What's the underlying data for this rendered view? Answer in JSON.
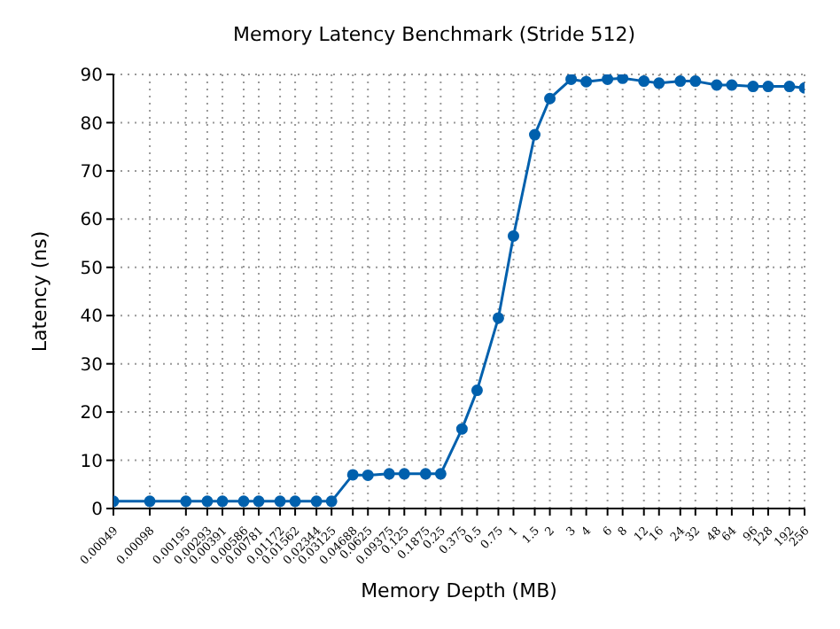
{
  "chart_data": {
    "type": "line",
    "title": "Memory Latency Benchmark (Stride 512)",
    "xlabel": "Memory Depth (MB)",
    "ylabel": "Latency (ns)",
    "log": "x",
    "x": [
      0.00049,
      0.00098,
      0.00195,
      0.00293,
      0.00391,
      0.00586,
      0.00781,
      0.01172,
      0.01562,
      0.02344,
      0.03125,
      0.04688,
      0.0625,
      0.09375,
      0.125,
      0.1875,
      0.25,
      0.375,
      0.5,
      0.75,
      1,
      1.5,
      2,
      3,
      4,
      6,
      8,
      12,
      16,
      24,
      32,
      48,
      64,
      96,
      128,
      192,
      256
    ],
    "series": [
      {
        "color": "#0060ad",
        "values": [
          1.5,
          1.5,
          1.5,
          1.5,
          1.5,
          1.5,
          1.5,
          1.5,
          1.5,
          1.5,
          1.5,
          7,
          6.9,
          7.2,
          7.2,
          7.2,
          7.2,
          16.5,
          24.5,
          39.5,
          56.5,
          77.5,
          85,
          89,
          88.5,
          89,
          89.2,
          88.6,
          88.2,
          88.6,
          88.6,
          87.8,
          87.8,
          87.5,
          87.5,
          87.5,
          87.2
        ]
      }
    ],
    "xlim": [
      0.00049,
      256
    ],
    "xticks": [
      0.00049,
      0.00098,
      0.00195,
      0.00293,
      0.00391,
      0.00586,
      0.00781,
      0.01172,
      0.01562,
      0.02344,
      0.03125,
      0.04688,
      0.0625,
      0.09375,
      0.125,
      0.1875,
      0.25,
      0.375,
      0.5,
      0.75,
      1,
      1.5,
      2,
      3,
      4,
      6,
      8,
      12,
      16,
      24,
      32,
      48,
      64,
      96,
      128,
      192,
      256
    ],
    "ylim": [
      0,
      90
    ],
    "yticks": [
      0,
      10,
      20,
      30,
      40,
      50,
      60,
      70,
      80,
      90
    ],
    "grid": true,
    "marker": "circle",
    "line_style": "solid"
  }
}
